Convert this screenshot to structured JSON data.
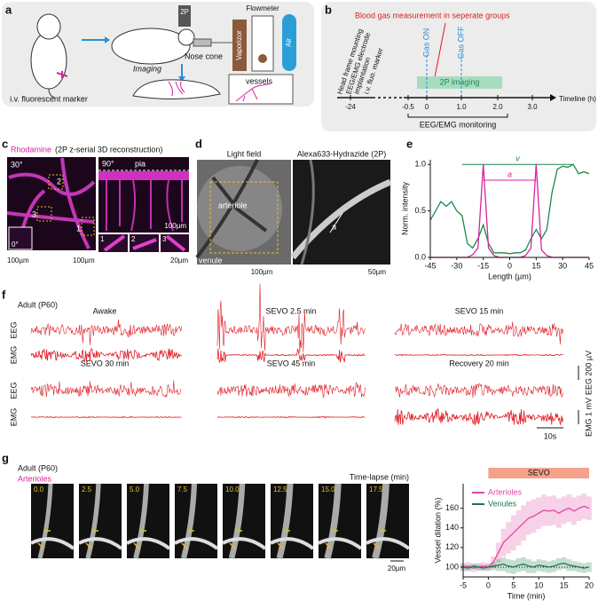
{
  "panels": {
    "a": {
      "label": "a",
      "marker": "i.v. fluorescent marker",
      "nose_cone": "Nose cone",
      "imaging": "Imaging",
      "microscope": "2P",
      "flowmeter": "Flowmeter",
      "vaporizor": "Vaporizor",
      "air": "Air",
      "vessels": "vessels"
    },
    "b": {
      "label": "b",
      "blood_gas": "Blood gas measurement in seperate groups",
      "events": [
        "Head frame mounting",
        "EEG/EMG electrode",
        "implantation",
        "i.v. fluo. marker"
      ],
      "gas_on": "Gas ON",
      "gas_off": "Gas OFF",
      "imaging": "2P imaging",
      "ticks": [
        "-24",
        "-0.5",
        "0",
        "1.0",
        "2.0",
        "3.0"
      ],
      "axis_title": "Timeline (h)",
      "monitoring": "EEG/EMG monitoring"
    },
    "c": {
      "label": "c",
      "stain": "Rhodamine",
      "method": "(2P z-serial 3D reconstruction)",
      "angles": [
        "30°",
        "90°",
        "0°"
      ],
      "pia": "pia",
      "regions": [
        "2",
        "3",
        "1"
      ],
      "insets": [
        "1",
        "2",
        "3"
      ],
      "scales": [
        "100µm",
        "100µm",
        "100µm",
        "20µm"
      ]
    },
    "d": {
      "label": "d",
      "titles": [
        "Light field",
        "Alexa633-Hydrazide (2P)"
      ],
      "arteriole": "arteriole",
      "venule": "venule",
      "a": "a",
      "scales": [
        "100µm",
        "50µm"
      ]
    },
    "e": {
      "label": "e"
    },
    "f": {
      "label": "f",
      "age": "Adult (P60)",
      "conditions": [
        "Awake",
        "SEVO 2.5 min",
        "SEVO 15 min",
        "SEVO 30 min",
        "SEVO 45 min",
        "Recovery 20 min"
      ],
      "rows": [
        "EEG",
        "EMG",
        "EEG",
        "EMG"
      ],
      "scales": [
        "EEG 200 µV",
        "EMG 1 mV",
        "10s"
      ]
    },
    "g": {
      "label": "g",
      "age": "Adult (P60)",
      "vessel": "Arterioles",
      "timelapse": "Time-lapse (min)",
      "frames": [
        "0.0",
        "2.5",
        "5.0",
        "7.5",
        "10.0",
        "12.5",
        "15.0",
        "17.5"
      ],
      "scale": "20µm"
    }
  },
  "chart_data": [
    {
      "type": "line",
      "xlabel": "Length (µm)",
      "ylabel": "Norm. intensity",
      "x": [
        -45,
        -42,
        -39,
        -36,
        -33,
        -30,
        -27,
        -24,
        -21,
        -18,
        -15,
        -12,
        -9,
        -6,
        -3,
        0,
        3,
        6,
        9,
        12,
        15,
        18,
        21,
        24,
        27,
        30,
        33,
        36,
        39,
        42,
        45
      ],
      "series": [
        {
          "color": "#1a8a4a",
          "values": [
            0.4,
            0.5,
            0.6,
            0.55,
            0.6,
            0.5,
            0.45,
            0.15,
            0.1,
            0.2,
            0.35,
            0.15,
            0.05,
            0.05,
            0.05,
            0.04,
            0.05,
            0.05,
            0.08,
            0.2,
            0.3,
            0.2,
            0.3,
            0.7,
            0.95,
            0.98,
            0.97,
            1.0,
            0.9,
            0.92,
            0.9
          ]
        },
        {
          "color": "#d6249f",
          "values": [
            0,
            0,
            0,
            0,
            0,
            0,
            0,
            0,
            0.03,
            0.1,
            1.0,
            0.1,
            0.02,
            0,
            0,
            0,
            0,
            0,
            0.02,
            0.1,
            1.0,
            0.08,
            0.02,
            0,
            0,
            0,
            0,
            0,
            0,
            0,
            0
          ]
        }
      ],
      "annotations": [
        {
          "text": "v",
          "x": [
            -27,
            36
          ],
          "y": 1.0,
          "color": "#1a8a4a"
        },
        {
          "text": "a",
          "x": [
            -15,
            15
          ],
          "y": 0.83,
          "color": "#d6249f"
        }
      ],
      "xlim": [
        -45,
        45
      ],
      "xticks": [
        -45,
        -30,
        -15,
        0,
        15,
        30,
        45
      ],
      "ylim": [
        0,
        1.05
      ],
      "yticks": [
        {
          "value": 0,
          "label": "0.0"
        },
        0.5,
        {
          "value": 1,
          "label": "1.0"
        }
      ]
    },
    {
      "type": "line",
      "xlabel": "Time (min)",
      "ylabel": "Vessel dilation (%)",
      "x": [
        -5,
        -4,
        -3,
        -2,
        -1,
        0,
        1,
        2,
        3,
        4,
        5,
        6,
        7,
        8,
        9,
        10,
        11,
        12,
        13,
        14,
        15,
        16,
        17,
        18,
        19,
        20
      ],
      "series": [
        {
          "name": "Arterioles",
          "color": "#e0489e",
          "values": [
            100,
            101,
            99,
            100,
            101,
            100,
            105,
            115,
            125,
            130,
            135,
            140,
            145,
            150,
            152,
            155,
            158,
            157,
            158,
            155,
            158,
            160,
            157,
            160,
            162,
            160
          ],
          "errors": [
            4,
            4,
            4,
            4,
            4,
            4,
            6,
            10,
            14,
            16,
            18,
            18,
            18,
            17,
            17,
            16,
            16,
            15,
            15,
            15,
            14,
            14,
            14,
            13,
            13,
            12
          ]
        },
        {
          "name": "Venules",
          "color": "#1a7a4a",
          "values": [
            100,
            99,
            101,
            100,
            99,
            100,
            101,
            102,
            103,
            101,
            100,
            102,
            103,
            101,
            100,
            102,
            101,
            100,
            101,
            103,
            104,
            102,
            101,
            100,
            99,
            100
          ],
          "errors": [
            3,
            3,
            3,
            3,
            3,
            3,
            4,
            6,
            7,
            7,
            7,
            7,
            7,
            7,
            6,
            6,
            6,
            6,
            6,
            6,
            6,
            6,
            5,
            5,
            5,
            5
          ]
        }
      ],
      "shaded_period": {
        "text": "SEVO",
        "x": [
          0,
          20
        ],
        "color": "#f4a28c"
      },
      "reference_line": 100,
      "legend": "top-left",
      "xlim": [
        -5,
        20
      ],
      "xticks": [
        -5,
        0,
        5,
        10,
        15,
        20
      ],
      "ylim": [
        90,
        185
      ],
      "yticks": [
        100,
        120,
        140,
        160
      ]
    }
  ]
}
